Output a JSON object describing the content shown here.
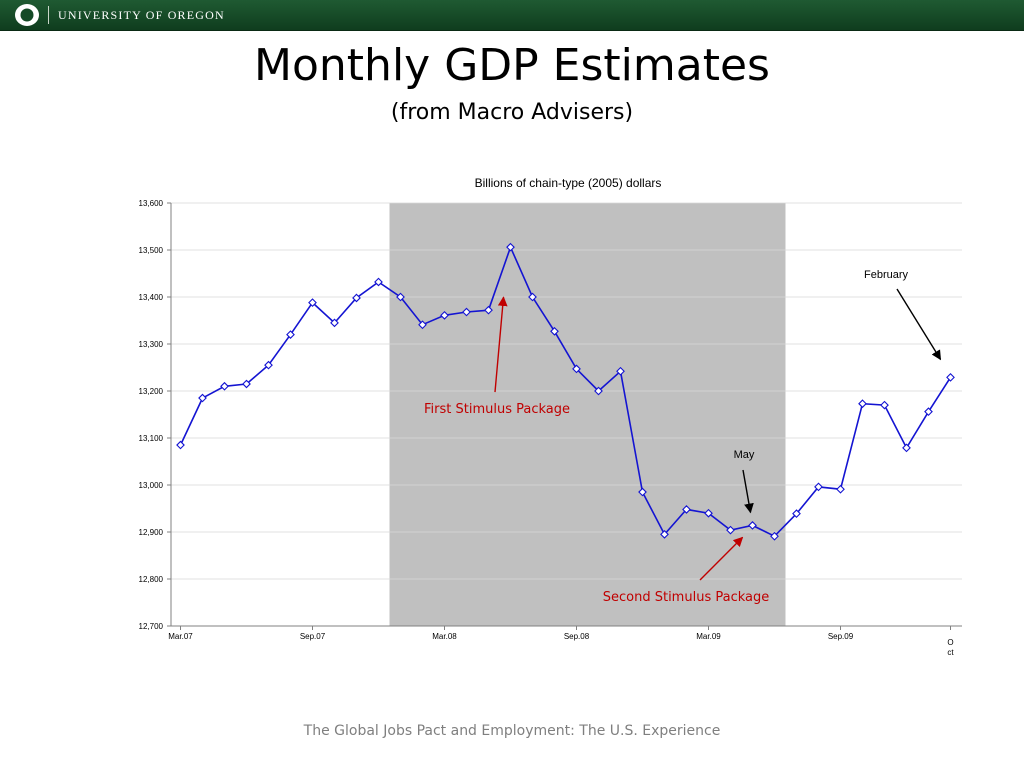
{
  "header": {
    "org_name": "UNIVERSITY OF OREGON"
  },
  "slide": {
    "title": "Monthly GDP Estimates",
    "subtitle": "(from Macro Advisers)",
    "footer": "The Global Jobs Pact and Employment: The U.S. Experience"
  },
  "colors": {
    "header": "#144a26",
    "line": "#1414d2",
    "recession": "#c0c0c0",
    "stimulus": "#c00000"
  },
  "chart_data": {
    "type": "line",
    "title": "Billions of chain-type (2005) dollars",
    "ylim": [
      12700,
      13600
    ],
    "yticks": [
      12700,
      12800,
      12900,
      13000,
      13100,
      13200,
      13300,
      13400,
      13500,
      13600
    ],
    "ytick_labels": [
      "12,700",
      "12,800",
      "12,900",
      "13,000",
      "13,100",
      "13,200",
      "13,300",
      "13,400",
      "13,500",
      "13,600"
    ],
    "xtick_labels": [
      "Mar.07",
      "Sep.07",
      "Mar.08",
      "Sep.08",
      "Mar.09",
      "Sep.09",
      "Oct"
    ],
    "xtick_positions": [
      0,
      6,
      12,
      18,
      24,
      30,
      35
    ],
    "grid": true,
    "shaded_region": {
      "from": 9.5,
      "to": 27.5
    },
    "series": [
      {
        "values": [
          13085,
          13185,
          13210,
          13215,
          13255,
          13320,
          13388,
          13345,
          13398,
          13432,
          13400,
          13341,
          13361,
          13368,
          13372,
          13506,
          13400,
          13327,
          13247,
          13200,
          13242,
          12985,
          12895,
          12948,
          12940,
          12904,
          12914,
          12891,
          12939,
          12996,
          12991,
          13173,
          13170,
          13079,
          13156,
          13229
        ]
      }
    ],
    "annotations": [
      {
        "text": "First Stimulus Package",
        "color": "#c00000",
        "target_index": 15
      },
      {
        "text": "Second Stimulus Package",
        "color": "#c00000",
        "target_index": 26
      },
      {
        "text": "May",
        "color": "#000000",
        "target_index": 26
      },
      {
        "text": "February",
        "color": "#000000",
        "target_index": 35
      }
    ]
  }
}
